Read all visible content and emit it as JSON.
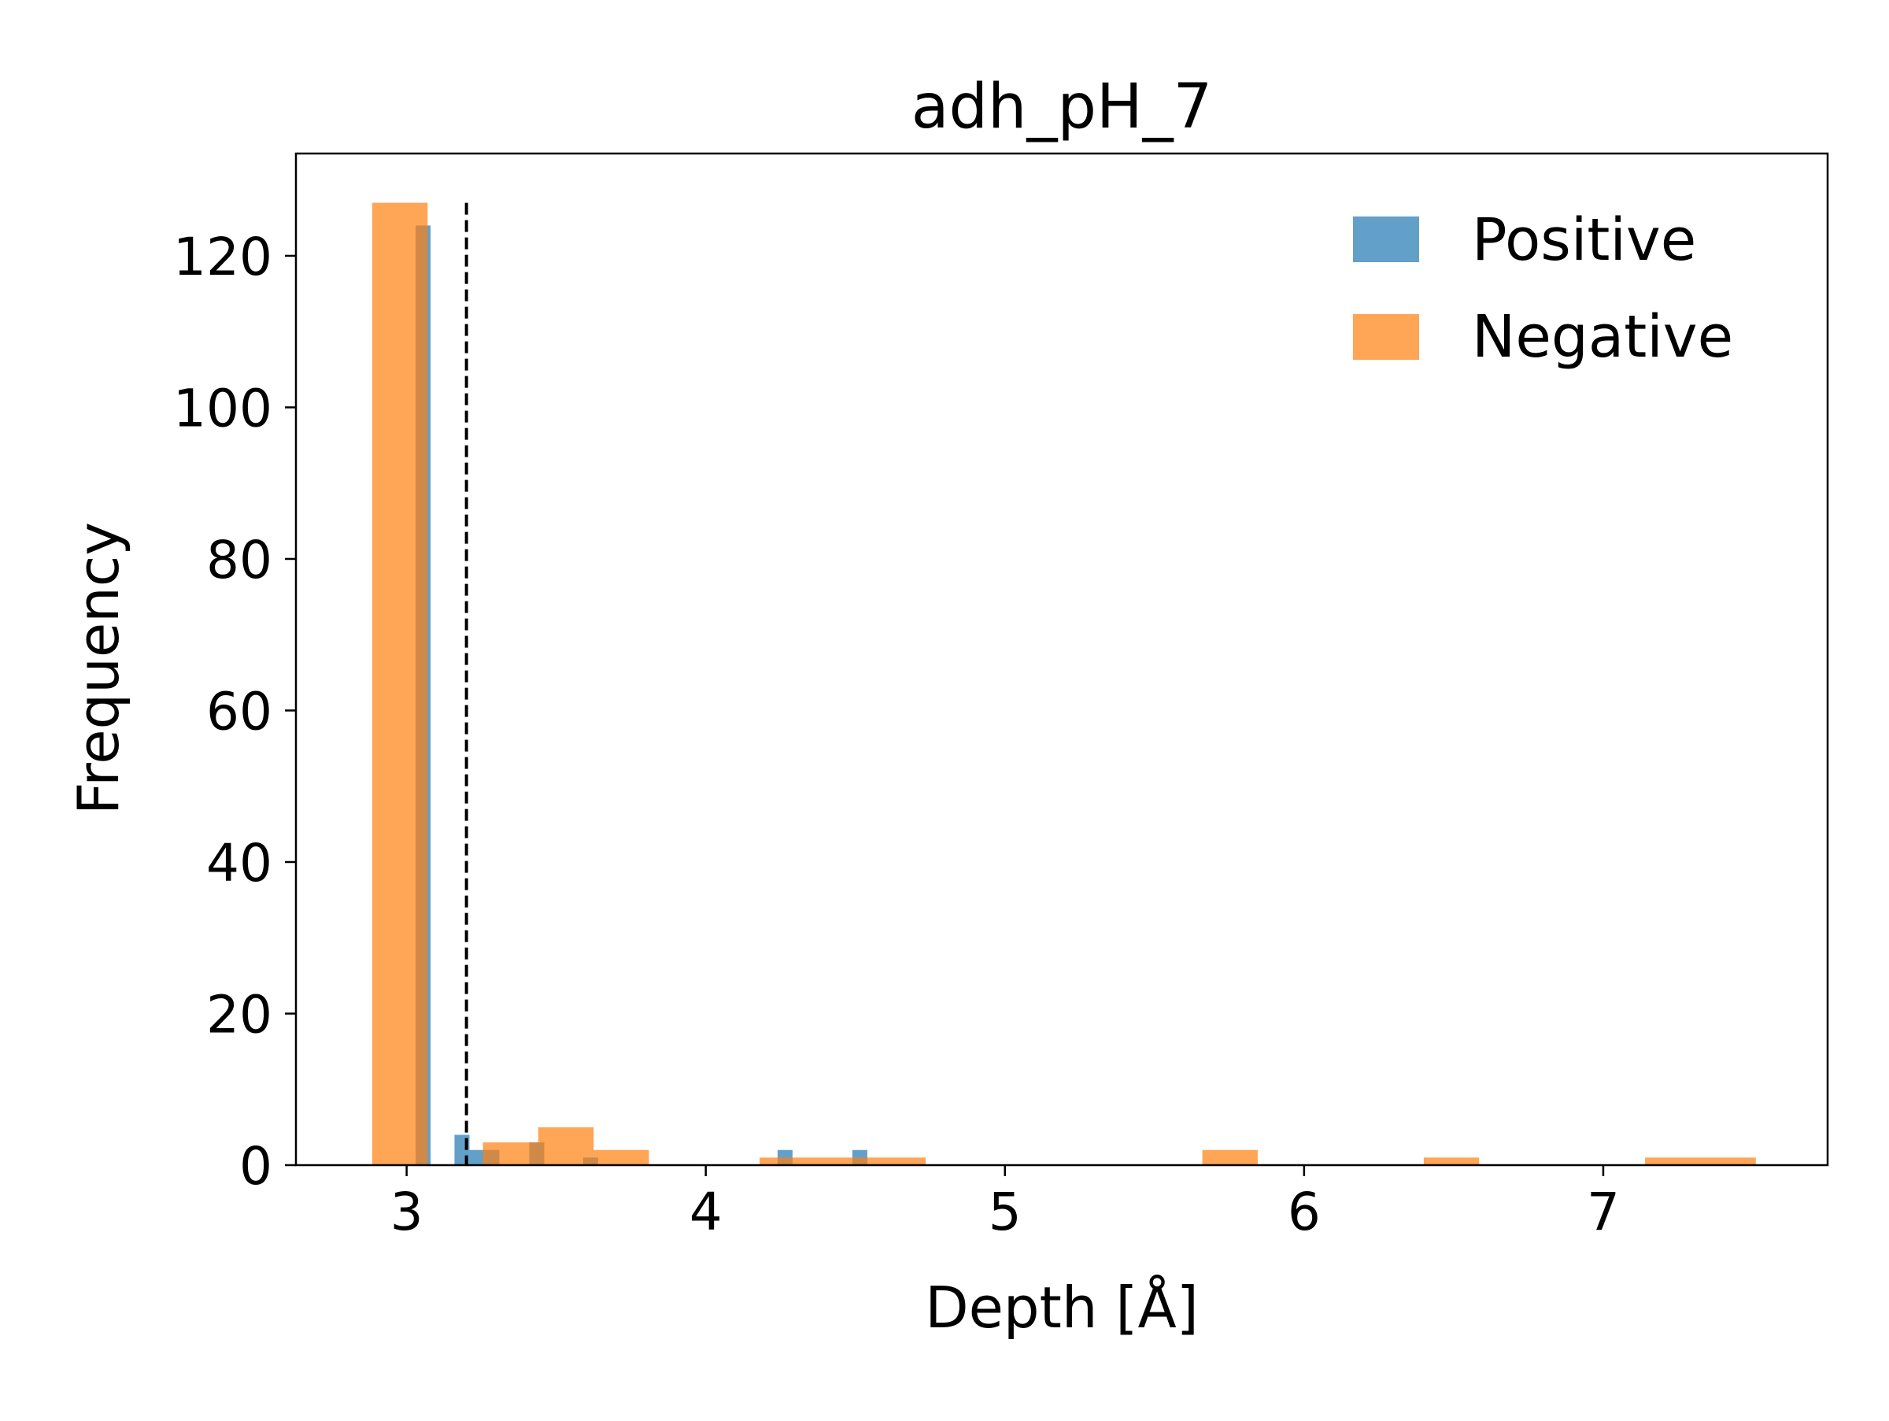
{
  "chart_data": {
    "type": "bar",
    "title": "adh_pH_7",
    "xlabel": "Depth [Å]",
    "ylabel": "Frequency",
    "xlim": [
      2.63,
      7.75
    ],
    "ylim": [
      0,
      133.5
    ],
    "x_ticks": [
      3,
      4,
      5,
      6,
      7
    ],
    "y_ticks": [
      0,
      20,
      40,
      60,
      80,
      100,
      120
    ],
    "grid": false,
    "legend_position": "top-right",
    "threshold_line": {
      "x": 3.2,
      "style": "dashed",
      "color": "#000000"
    },
    "series": [
      {
        "name": "Positive",
        "color": "#1f77b4",
        "bin_width": 0.05,
        "bars": [
          {
            "x0": 3.03,
            "value": 124
          },
          {
            "x0": 3.16,
            "value": 4
          },
          {
            "x0": 3.21,
            "value": 2
          },
          {
            "x0": 3.26,
            "value": 2
          },
          {
            "x0": 3.41,
            "value": 3
          },
          {
            "x0": 3.59,
            "value": 1
          },
          {
            "x0": 4.24,
            "value": 2
          },
          {
            "x0": 4.49,
            "value": 2
          }
        ]
      },
      {
        "name": "Negative",
        "color": "#ff7f0e",
        "bin_width": 0.185,
        "bars": [
          {
            "x0": 2.885,
            "value": 127
          },
          {
            "x0": 3.255,
            "value": 3
          },
          {
            "x0": 3.44,
            "value": 5
          },
          {
            "x0": 3.625,
            "value": 2
          },
          {
            "x0": 4.18,
            "value": 1
          },
          {
            "x0": 4.365,
            "value": 1
          },
          {
            "x0": 4.55,
            "value": 1
          },
          {
            "x0": 5.66,
            "value": 2
          },
          {
            "x0": 6.4,
            "value": 1
          },
          {
            "x0": 7.14,
            "value": 1
          },
          {
            "x0": 7.325,
            "value": 1
          }
        ]
      }
    ]
  }
}
